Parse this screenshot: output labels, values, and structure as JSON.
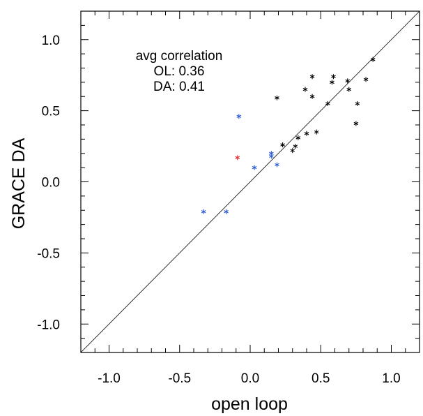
{
  "chart_data": {
    "type": "scatter",
    "title": "",
    "xlabel": "open loop",
    "ylabel": "GRACE DA",
    "xlim": [
      -1.2,
      1.2
    ],
    "ylim": [
      -1.2,
      1.2
    ],
    "xticks": [
      -1.0,
      -0.5,
      0.0,
      0.5,
      1.0
    ],
    "yticks": [
      -1.0,
      -0.5,
      0.0,
      0.5,
      1.0
    ],
    "xtick_labels": [
      "-1.0",
      "-0.5",
      "0.0",
      "0.5",
      "1.0"
    ],
    "ytick_labels": [
      "-1.0",
      "-0.5",
      "0.0",
      "0.5",
      "1.0"
    ],
    "grid": false,
    "reference_line": "y = x",
    "marker": "*",
    "annotation": {
      "line1": "avg correlation",
      "line2": "OL: 0.36",
      "line3": "DA: 0.41"
    },
    "series": [
      {
        "color": "#000000",
        "points": [
          {
            "x": 0.87,
            "y": 0.86
          },
          {
            "x": 0.44,
            "y": 0.74
          },
          {
            "x": 0.59,
            "y": 0.74
          },
          {
            "x": 0.58,
            "y": 0.7
          },
          {
            "x": 0.69,
            "y": 0.71
          },
          {
            "x": 0.82,
            "y": 0.72
          },
          {
            "x": 0.39,
            "y": 0.65
          },
          {
            "x": 0.7,
            "y": 0.65
          },
          {
            "x": 0.19,
            "y": 0.59
          },
          {
            "x": 0.44,
            "y": 0.6
          },
          {
            "x": 0.55,
            "y": 0.55
          },
          {
            "x": 0.76,
            "y": 0.55
          },
          {
            "x": 0.75,
            "y": 0.41
          },
          {
            "x": 0.4,
            "y": 0.34
          },
          {
            "x": 0.47,
            "y": 0.35
          },
          {
            "x": 0.34,
            "y": 0.31
          },
          {
            "x": 0.23,
            "y": 0.26
          },
          {
            "x": 0.32,
            "y": 0.25
          },
          {
            "x": 0.3,
            "y": 0.22
          }
        ]
      },
      {
        "color": "#2a5bd7",
        "points": [
          {
            "x": -0.08,
            "y": 0.46
          },
          {
            "x": 0.15,
            "y": 0.2
          },
          {
            "x": 0.15,
            "y": 0.18
          },
          {
            "x": 0.19,
            "y": 0.12
          },
          {
            "x": 0.03,
            "y": 0.1
          },
          {
            "x": -0.33,
            "y": -0.21
          },
          {
            "x": -0.17,
            "y": -0.21
          }
        ]
      },
      {
        "color": "#e0282a",
        "points": [
          {
            "x": -0.09,
            "y": 0.17
          }
        ]
      }
    ]
  }
}
